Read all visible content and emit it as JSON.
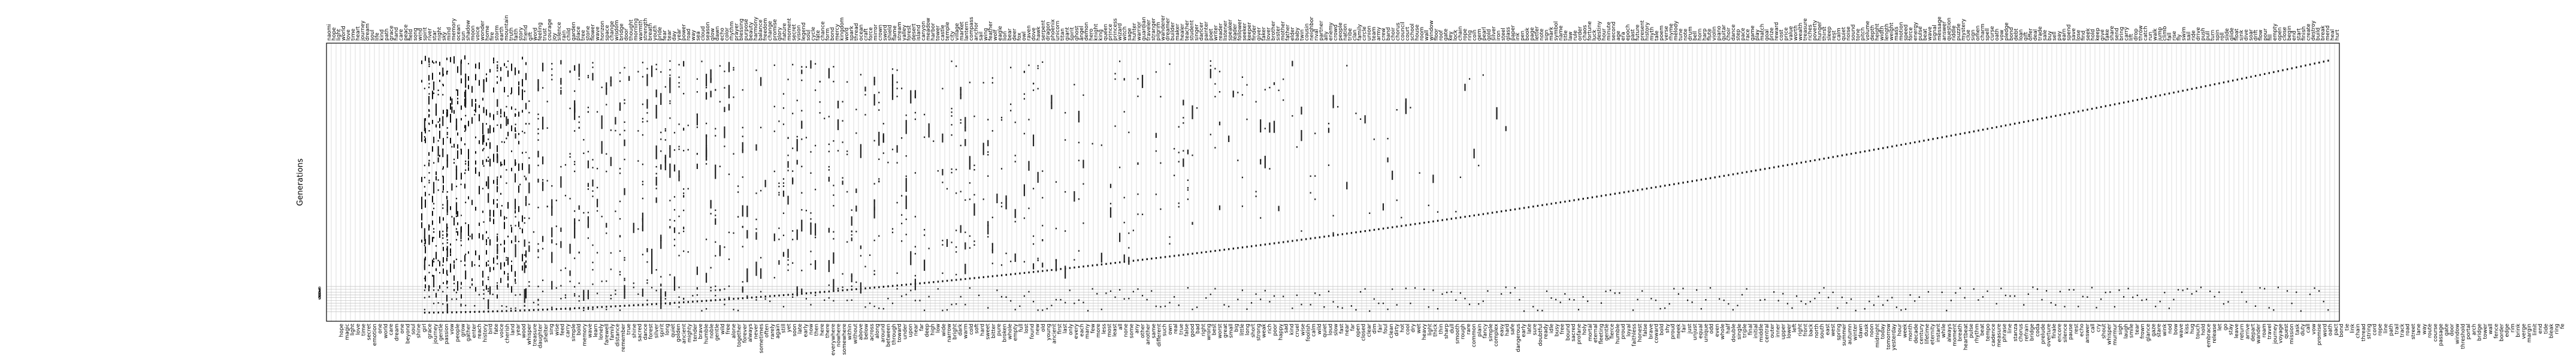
{
  "chart_data": {
    "type": "scatter",
    "title": "",
    "ylabel": "Generations",
    "xlabel": "",
    "grid": true,
    "ylim": [
      0,
      160
    ],
    "generation_ticks": [
      "0",
      "1",
      "2",
      "3",
      "4",
      "5",
      "6",
      "7",
      "8",
      "9"
    ],
    "words_top": [
      "naomi",
      "hope",
      "light",
      "world",
      "love",
      "time",
      "heart",
      "journey",
      "dream",
      "soul",
      "life",
      "kind",
      "path",
      "grace",
      "hand",
      "care",
      "peace",
      "field",
      "song",
      "wind",
      "spirit",
      "river",
      "star",
      "night",
      "sky",
      "mind",
      "memory",
      "ocean",
      "sun",
      "shadow",
      "moon",
      "voice",
      "wonder",
      "home",
      "fire",
      "storm",
      "earth",
      "mountain",
      "truth",
      "faith",
      "story",
      "friend",
      "gift",
      "word",
      "feeling",
      "trust",
      "courage",
      "joy",
      "silence",
      "rain",
      "child",
      "garden",
      "place",
      "tree",
      "stone",
      "flower",
      "wave",
      "horizon",
      "space",
      "change",
      "wisdom",
      "bridge",
      "door",
      "thought",
      "morning",
      "warmth",
      "strength",
      "breath",
      "youth",
      "pride",
      "fear",
      "tear",
      "day",
      "year",
      "power",
      "road",
      "way",
      "sea",
      "cloud",
      "season",
      "glow",
      "dawn",
      "echo",
      "color",
      "rhythm",
      "prayer",
      "blessing",
      "purpose",
      "beauty",
      "harmony",
      "balance",
      "freedom",
      "change",
      "promise",
      "glory",
      "nature",
      "moment",
      "secret",
      "vision",
      "legend",
      "soul",
      "cycle",
      "fate",
      "chance",
      "form",
      "bond",
      "mercy",
      "kingdom",
      "word",
      "spark",
      "thread",
      "ocean",
      "craft",
      "force",
      "mirror",
      "crown",
      "sword",
      "shield",
      "flame",
      "stream",
      "valley",
      "forest",
      "desert",
      "island",
      "canyon",
      "meadow",
      "harbor",
      "tower",
      "castle",
      "temple",
      "city",
      "village",
      "market",
      "lantern",
      "compass",
      "anchor",
      "sail",
      "wing",
      "feather",
      "wolf",
      "eagle",
      "lion",
      "bear",
      "deer",
      "fox",
      "owl",
      "raven",
      "dove",
      "hawk",
      "serpent",
      "dragon",
      "phoenix",
      "unicorn",
      "titan",
      "giant",
      "spirit",
      "ghost",
      "angel",
      "demon",
      "hero",
      "knight",
      "king",
      "queen",
      "prince",
      "princess",
      "wizard",
      "witch",
      "sage",
      "hunter",
      "warrior",
      "guardian",
      "traveler",
      "stranger",
      "pilgrim",
      "wanderer",
      "dreamer",
      "builder",
      "maker",
      "healer",
      "teacher",
      "student",
      "singer",
      "dancer",
      "painter",
      "poet",
      "writer",
      "reader",
      "listener",
      "speaker",
      "leader",
      "follower",
      "seeker",
      "keeper",
      "finder",
      "giver",
      "taker",
      "lover",
      "brother",
      "sister",
      "mother",
      "father",
      "elder",
      "baby",
      "twin",
      "cousin",
      "neighbor",
      "rival",
      "partner",
      "ally",
      "enemy",
      "crowd",
      "people",
      "nation",
      "tribe",
      "clan",
      "family",
      "circle",
      "union",
      "team",
      "army",
      "crew",
      "band",
      "choir",
      "chorus",
      "council",
      "court",
      "school",
      "house",
      "room",
      "wall",
      "window",
      "floor",
      "roof",
      "gate",
      "key",
      "lock",
      "chain",
      "rope",
      "ring",
      "coin",
      "gem",
      "pearl",
      "gold",
      "silver",
      "iron",
      "steel",
      "glass",
      "paper",
      "ink",
      "pen",
      "book",
      "page",
      "letter",
      "note",
      "sign",
      "mark",
      "symbol",
      "name",
      "title",
      "law",
      "rule",
      "order",
      "chaos",
      "fortune",
      "luck",
      "destiny",
      "hour",
      "minute",
      "second",
      "age",
      "era",
      "epoch",
      "past",
      "future",
      "present",
      "history",
      "myth",
      "tale",
      "poem",
      "verse",
      "rhyme",
      "melody",
      "tune",
      "note",
      "drum",
      "bell",
      "horn",
      "harp",
      "flute",
      "violin",
      "piano",
      "guitar",
      "choir",
      "dance",
      "step",
      "pace",
      "race",
      "game",
      "play",
      "match",
      "goal",
      "prize",
      "reward",
      "cost",
      "price",
      "value",
      "worth",
      "wealth",
      "treasure",
      "riches",
      "poverty",
      "hunger",
      "thirst",
      "sleep",
      "rest",
      "calm",
      "quiet",
      "noise",
      "sound",
      "tone",
      "pitch",
      "volume",
      "depth",
      "height",
      "width",
      "length",
      "weight",
      "mass",
      "motion",
      "speed",
      "force",
      "energy",
      "pulse",
      "beat",
      "wave",
      "signal",
      "message",
      "answer",
      "question",
      "riddle",
      "puzzle",
      "mystery",
      "clue",
      "sign",
      "omen",
      "charm",
      "spell",
      "curse",
      "oath",
      "vow",
      "pledge",
      "bond",
      "debt",
      "loan",
      "gift",
      "offer",
      "deal",
      "trade",
      "sale",
      "buy",
      "sell",
      "pay",
      "earn",
      "spend",
      "save",
      "lose",
      "find",
      "seek",
      "hold",
      "keep",
      "give",
      "take",
      "share",
      "send",
      "bring",
      "carry",
      "lift",
      "drop",
      "throw",
      "catch",
      "run",
      "walk",
      "jump",
      "climb",
      "fall",
      "rise",
      "fly",
      "swim",
      "sail",
      "ride",
      "drive",
      "push",
      "pull",
      "turn",
      "spin",
      "roll",
      "slide",
      "glide",
      "float",
      "sink",
      "dive",
      "soar",
      "drift",
      "flow",
      "pour",
      "fill",
      "empty",
      "open",
      "close",
      "begin",
      "end",
      "start",
      "finish",
      "create",
      "destroy",
      "build",
      "break",
      "mend",
      "heal",
      "hurt",
      "help",
      "harm",
      "protect",
      "defend",
      "attack",
      "fight",
      "win",
      "lose",
      "try",
      "fail",
      "succeed",
      "learn",
      "teach",
      "grow",
      "fade",
      "shine",
      "bloom",
      "wither",
      "wake",
      "dream",
      "hope"
    ],
    "words_bottom": [
      "hope",
      "magic",
      "light",
      "love",
      "time",
      "secret",
      "emotion",
      "one",
      "world",
      "care",
      "dream",
      "one",
      "beyond",
      "soul",
      "shine",
      "girl",
      "grace",
      "journey",
      "gentle",
      "passion",
      "vow",
      "people",
      "grow",
      "gather",
      "enter",
      "reach",
      "history",
      "bird",
      "fate",
      "voice",
      "cherish",
      "land",
      "year",
      "wood",
      "whisper",
      "treasure",
      "daughter",
      "shelter",
      "sing",
      "wise",
      "feed",
      "carry",
      "simple",
      "bold",
      "memory",
      "wave",
      "learn",
      "lonely",
      "farewell",
      "family",
      "distance",
      "remember",
      "true",
      "shine",
      "sacred",
      "dance",
      "forest",
      "silver",
      "spirit",
      "long",
      "quiet",
      "golden",
      "ancient",
      "mighty",
      "tender",
      "brave",
      "humble",
      "noble",
      "gentle",
      "wild",
      "free",
      "alone",
      "together",
      "forever",
      "always",
      "never",
      "sometimes",
      "often",
      "rarely",
      "again",
      "still",
      "yet",
      "soon",
      "late",
      "early",
      "now",
      "then",
      "here",
      "there",
      "everywhere",
      "nowhere",
      "somewhere",
      "within",
      "without",
      "above",
      "below",
      "across",
      "along",
      "around",
      "between",
      "through",
      "toward",
      "under",
      "upon",
      "near",
      "far",
      "deep",
      "high",
      "low",
      "wide",
      "narrow",
      "bright",
      "dark",
      "warm",
      "cold",
      "soft",
      "hard",
      "sweet",
      "bitter",
      "pure",
      "broken",
      "whole",
      "empty",
      "full",
      "lost",
      "found",
      "new",
      "old",
      "young",
      "ancient",
      "first",
      "last",
      "only",
      "every",
      "each",
      "many",
      "few",
      "more",
      "less",
      "most",
      "least",
      "all",
      "none",
      "some",
      "any",
      "other",
      "another",
      "same",
      "different",
      "such",
      "own",
      "real",
      "true",
      "false",
      "good",
      "bad",
      "right",
      "wrong",
      "best",
      "worst",
      "great",
      "small",
      "big",
      "little",
      "long",
      "short",
      "strong",
      "weak",
      "rich",
      "poor",
      "happy",
      "sad",
      "kind",
      "cruel",
      "wise",
      "foolish",
      "calm",
      "wild",
      "quiet",
      "loud",
      "slow",
      "fast",
      "near",
      "far",
      "open",
      "closed",
      "clear",
      "dim",
      "fair",
      "foul",
      "clean",
      "dirty",
      "hot",
      "cool",
      "dry",
      "wet",
      "heavy",
      "light",
      "thick",
      "thin",
      "sharp",
      "dull",
      "smooth",
      "rough",
      "rare",
      "common",
      "plain",
      "fancy",
      "simple",
      "complex",
      "easy",
      "hard",
      "safe",
      "dangerous",
      "early",
      "late",
      "sure",
      "doubtful",
      "ready",
      "idle",
      "busy",
      "free",
      "bound",
      "sacred",
      "profane",
      "holy",
      "mortal",
      "eternal",
      "fleeting",
      "gentle",
      "fierce",
      "humble",
      "proud",
      "loyal",
      "faithless",
      "honest",
      "false",
      "brave",
      "coward",
      "bold",
      "shy",
      "proud",
      "meek",
      "fair",
      "just",
      "unjust",
      "equal",
      "unique",
      "odd",
      "even",
      "whole",
      "half",
      "double",
      "single",
      "triple",
      "final",
      "initial",
      "middle",
      "central",
      "outer",
      "inner",
      "upper",
      "lower",
      "left",
      "right",
      "front",
      "back",
      "north",
      "south",
      "east",
      "west",
      "spring",
      "summer",
      "autumn",
      "winter",
      "dawn",
      "dusk",
      "noon",
      "midnight",
      "today",
      "tomorrow",
      "yesterday",
      "hour",
      "week",
      "month",
      "decade",
      "century",
      "lifetime",
      "eternity",
      "instant",
      "while",
      "always",
      "moment",
      "breath",
      "heartbeat",
      "pulse",
      "rhythm",
      "beat",
      "tempo",
      "cadence",
      "measure",
      "phrase",
      "line",
      "stanza",
      "chorus",
      "refrain",
      "bridge",
      "coda",
      "prelude",
      "overture",
      "finale",
      "encore",
      "silence",
      "pause",
      "rest",
      "echo",
      "answer",
      "call",
      "cry",
      "shout",
      "whisper",
      "murmur",
      "sigh",
      "laugh",
      "smile",
      "tear",
      "frown",
      "glance",
      "gaze",
      "stare",
      "wink",
      "nod",
      "bow",
      "wave",
      "kiss",
      "hug",
      "touch",
      "hold",
      "embrace",
      "release",
      "let",
      "go",
      "stay",
      "leave",
      "return",
      "arrive",
      "depart",
      "wander",
      "roam",
      "travel",
      "journey",
      "voyage",
      "quest",
      "mission",
      "task",
      "duty",
      "call",
      "vow",
      "promise",
      "word",
      "oath",
      "pact",
      "bond",
      "tie",
      "link",
      "chain",
      "thread",
      "string",
      "cord",
      "rope",
      "line",
      "path",
      "trail",
      "track",
      "road",
      "street",
      "lane",
      "way",
      "route",
      "course",
      "passage",
      "gate",
      "door",
      "window",
      "threshold",
      "portal",
      "arch",
      "bridge",
      "tower",
      "wall",
      "fence",
      "border",
      "edge",
      "rim",
      "brink",
      "verge",
      "margin",
      "limit",
      "end",
      "tide",
      "bleak",
      "ring",
      "fe"
    ],
    "word_count_top": 400,
    "word_count_bottom": 360
  }
}
